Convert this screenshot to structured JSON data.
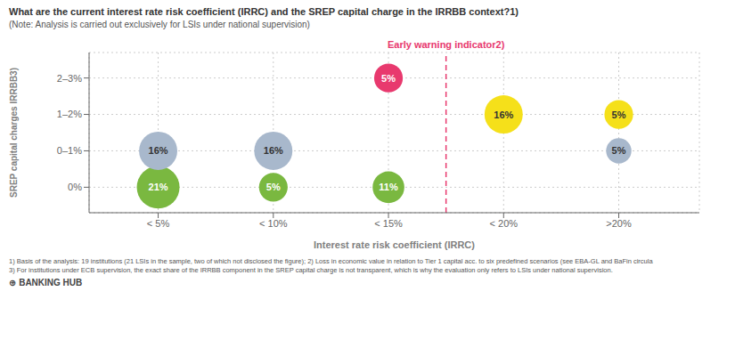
{
  "chart_data": {
    "type": "scatter",
    "title": "What are the current interest rate risk coefficient (IRRC) and the SREP capital charge in the IRRBB context?1)",
    "subtitle": "(Note: Analysis is carried out exclusively for LSIs under national supervision)",
    "x_label": "Interest rate risk coefficient (IRRC)",
    "y_label": "SREP capital charges IRRBB3)",
    "xlim": [
      -0.6,
      4.7
    ],
    "ylim": [
      -0.7,
      3.7
    ],
    "xticks": [
      {
        "value": 0,
        "label": "< 5%"
      },
      {
        "value": 1,
        "label": "< 10%"
      },
      {
        "value": 2,
        "label": "< 15%"
      },
      {
        "value": 3,
        "label": "< 20%"
      },
      {
        "value": 4,
        "label": ">20%"
      }
    ],
    "yticks": [
      {
        "value": 0,
        "label": "0%"
      },
      {
        "value": 1,
        "label": "0–1%"
      },
      {
        "value": 2,
        "label": "1–2%"
      },
      {
        "value": 3,
        "label": "2–3%"
      }
    ],
    "grid": true,
    "data_labels": true,
    "points": [
      {
        "x": 0,
        "y": 0,
        "size": 2000,
        "value": 21,
        "value_label": "21%",
        "color": "#7ab840"
      },
      {
        "x": 1,
        "y": 0,
        "size": 900,
        "value": 5,
        "value_label": "5%",
        "color": "#7ab840"
      },
      {
        "x": 2,
        "y": 0,
        "size": 1100,
        "value": 11,
        "value_label": "11%",
        "color": "#7ab840"
      },
      {
        "x": 0,
        "y": 1,
        "size": 1600,
        "value": 16,
        "value_label": "16%",
        "color": "#a8b8cc"
      },
      {
        "x": 1,
        "y": 1,
        "size": 1600,
        "value": 16,
        "value_label": "16%",
        "color": "#a8b8cc"
      },
      {
        "x": 4,
        "y": 1,
        "size": 700,
        "value": 5,
        "value_label": "5%",
        "color": "#a8b8cc"
      },
      {
        "x": 3,
        "y": 2,
        "size": 1600,
        "value": 16,
        "value_label": "16%",
        "color": "#f5e01a"
      },
      {
        "x": 4,
        "y": 2,
        "size": 900,
        "value": 5,
        "value_label": "5%",
        "color": "#f5e01a"
      },
      {
        "x": 2,
        "y": 3,
        "size": 900,
        "value": 5,
        "value_label": "5%",
        "color": "#e8396e"
      }
    ],
    "annotations": [
      {
        "text": "Early warning indicator2)",
        "x": 2.5,
        "color": "#e8396e",
        "line_style": "dashed"
      }
    ],
    "footnotes": [
      "1) Basis of the analysis: 19 institutions (21 LSIs in the sample, two of which not disclosed the figure); 2) Loss in economic value in relation to Tier 1 capital acc. to six predefined scenarios (see EBA-GL and BaFin circula",
      "3) For institutions under ECB supervision, the exact share of the IRRBB component in the SREP capital charge is not transparent, which is why the evaluation only refers to LSIs under national supervision."
    ],
    "brand": "⊕ BANKING HUB"
  }
}
